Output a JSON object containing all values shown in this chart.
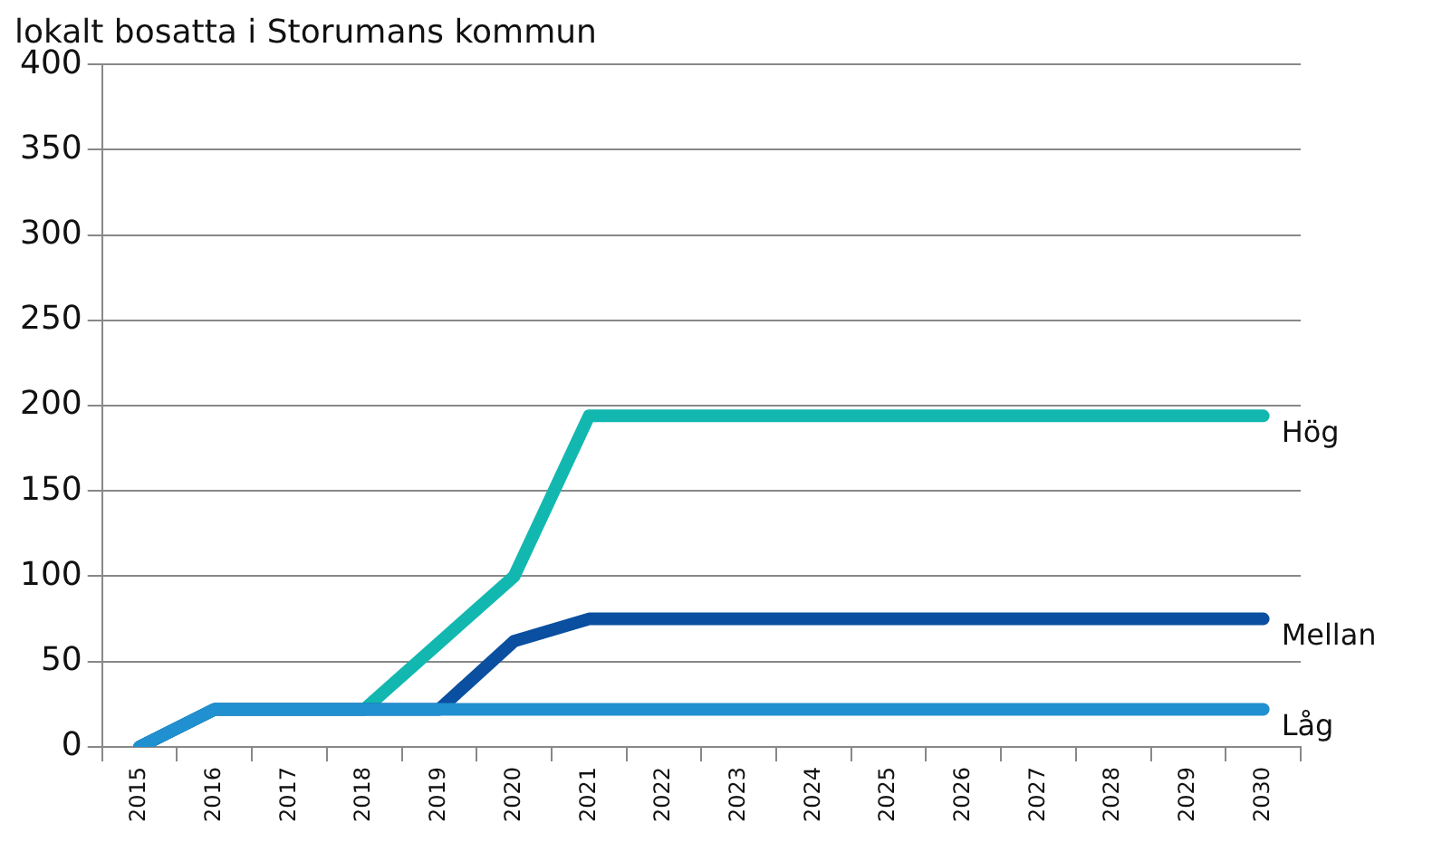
{
  "chart_data": {
    "type": "line",
    "title": "lokalt bosatta i Storumans kommun",
    "categories": [
      "2015",
      "2016",
      "2017",
      "2018",
      "2019",
      "2020",
      "2021",
      "2022",
      "2023",
      "2024",
      "2025",
      "2026",
      "2027",
      "2028",
      "2029",
      "2030"
    ],
    "series": [
      {
        "name": "Hög",
        "color": "#12b8b0",
        "values": [
          0,
          22,
          22,
          22,
          61,
          100,
          194,
          194,
          194,
          194,
          194,
          194,
          194,
          194,
          194,
          194
        ]
      },
      {
        "name": "Mellan",
        "color": "#0a4fa0",
        "values": [
          0,
          22,
          22,
          22,
          22,
          62,
          75,
          75,
          75,
          75,
          75,
          75,
          75,
          75,
          75,
          75
        ]
      },
      {
        "name": "Låg",
        "color": "#2090d0",
        "values": [
          0,
          22,
          22,
          22,
          22,
          22,
          22,
          22,
          22,
          22,
          22,
          22,
          22,
          22,
          22,
          22
        ]
      }
    ],
    "ylim": [
      0,
      400
    ],
    "yticks": [
      0,
      50,
      100,
      150,
      200,
      250,
      300,
      350,
      400
    ],
    "grid": "y",
    "legend": false,
    "marker": "none",
    "line_style": "solid"
  }
}
